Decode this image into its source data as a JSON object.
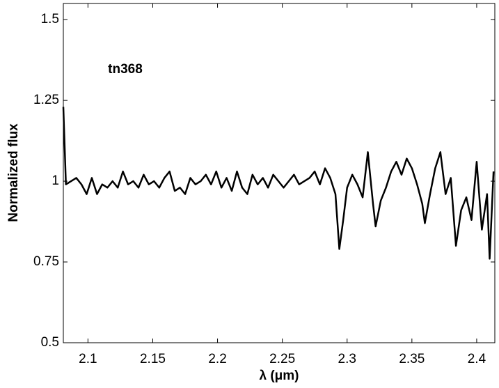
{
  "chart_data": {
    "type": "line",
    "annotation": "tn368",
    "x_label": "λ (μm)",
    "y_label": "Normalized flux",
    "x": [
      2.081,
      2.083,
      2.087,
      2.091,
      2.095,
      2.099,
      2.103,
      2.107,
      2.111,
      2.115,
      2.119,
      2.123,
      2.127,
      2.131,
      2.135,
      2.139,
      2.143,
      2.147,
      2.151,
      2.155,
      2.159,
      2.163,
      2.167,
      2.171,
      2.175,
      2.179,
      2.183,
      2.187,
      2.191,
      2.195,
      2.199,
      2.203,
      2.207,
      2.211,
      2.215,
      2.219,
      2.223,
      2.227,
      2.231,
      2.235,
      2.239,
      2.243,
      2.247,
      2.251,
      2.255,
      2.259,
      2.263,
      2.267,
      2.271,
      2.275,
      2.279,
      2.283,
      2.287,
      2.291,
      2.294,
      2.297,
      2.3,
      2.304,
      2.308,
      2.312,
      2.316,
      2.32,
      2.322,
      2.326,
      2.33,
      2.334,
      2.338,
      2.342,
      2.346,
      2.35,
      2.354,
      2.358,
      2.36,
      2.364,
      2.368,
      2.372,
      2.376,
      2.38,
      2.384,
      2.388,
      2.392,
      2.396,
      2.4,
      2.404,
      2.408,
      2.41,
      2.413
    ],
    "series": [
      {
        "color": "#000000",
        "values": [
          1.23,
          0.99,
          1.0,
          1.01,
          0.99,
          0.96,
          1.01,
          0.96,
          0.99,
          0.98,
          1.0,
          0.98,
          1.03,
          0.99,
          1.0,
          0.98,
          1.02,
          0.99,
          1.0,
          0.98,
          1.01,
          1.03,
          0.97,
          0.98,
          0.96,
          1.01,
          0.99,
          1.0,
          1.02,
          0.99,
          1.03,
          0.98,
          1.01,
          0.97,
          1.03,
          0.98,
          0.96,
          1.02,
          0.99,
          1.01,
          0.98,
          1.02,
          1.0,
          0.98,
          1.0,
          1.02,
          0.99,
          1.0,
          1.01,
          1.03,
          0.99,
          1.04,
          1.01,
          0.96,
          0.79,
          0.88,
          0.98,
          1.02,
          0.99,
          0.95,
          1.09,
          0.93,
          0.86,
          0.94,
          0.98,
          1.03,
          1.06,
          1.02,
          1.07,
          1.04,
          0.99,
          0.93,
          0.87,
          0.96,
          1.04,
          1.09,
          0.96,
          1.01,
          0.8,
          0.91,
          0.95,
          0.88,
          1.06,
          0.85,
          0.96,
          0.76,
          1.03
        ]
      }
    ],
    "xlim": [
      2.081,
      2.414
    ],
    "ylim": [
      0.5,
      1.55
    ],
    "xticks": [
      2.1,
      2.15,
      2.2,
      2.25,
      2.3,
      2.35,
      2.4
    ],
    "yticks": [
      0.5,
      0.75,
      1,
      1.25,
      1.5
    ],
    "grid": false
  }
}
